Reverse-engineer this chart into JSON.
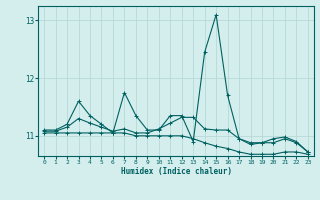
{
  "title": "",
  "xlabel": "Humidex (Indice chaleur)",
  "background_color": "#d4eeee",
  "grid_color": "#b8d8d8",
  "line_color": "#006060",
  "xlim": [
    -0.5,
    23.5
  ],
  "ylim": [
    10.65,
    13.25
  ],
  "yticks": [
    11,
    12,
    13
  ],
  "xticks": [
    0,
    1,
    2,
    3,
    4,
    5,
    6,
    7,
    8,
    9,
    10,
    11,
    12,
    13,
    14,
    15,
    16,
    17,
    18,
    19,
    20,
    21,
    22,
    23
  ],
  "series": [
    [
      11.1,
      11.1,
      11.2,
      11.6,
      11.35,
      11.2,
      11.05,
      11.75,
      11.35,
      11.1,
      11.1,
      11.35,
      11.35,
      10.9,
      12.45,
      13.1,
      11.7,
      10.95,
      10.85,
      10.88,
      10.95,
      10.98,
      10.9,
      10.72
    ],
    [
      11.08,
      11.08,
      11.15,
      11.3,
      11.22,
      11.15,
      11.08,
      11.12,
      11.05,
      11.05,
      11.12,
      11.22,
      11.32,
      11.32,
      11.12,
      11.1,
      11.1,
      10.95,
      10.88,
      10.88,
      10.88,
      10.95,
      10.88,
      10.72
    ],
    [
      11.05,
      11.05,
      11.05,
      11.05,
      11.05,
      11.05,
      11.05,
      11.05,
      11.0,
      11.0,
      11.0,
      11.0,
      11.0,
      10.95,
      10.88,
      10.82,
      10.78,
      10.72,
      10.68,
      10.68,
      10.68,
      10.72,
      10.72,
      10.68
    ]
  ]
}
